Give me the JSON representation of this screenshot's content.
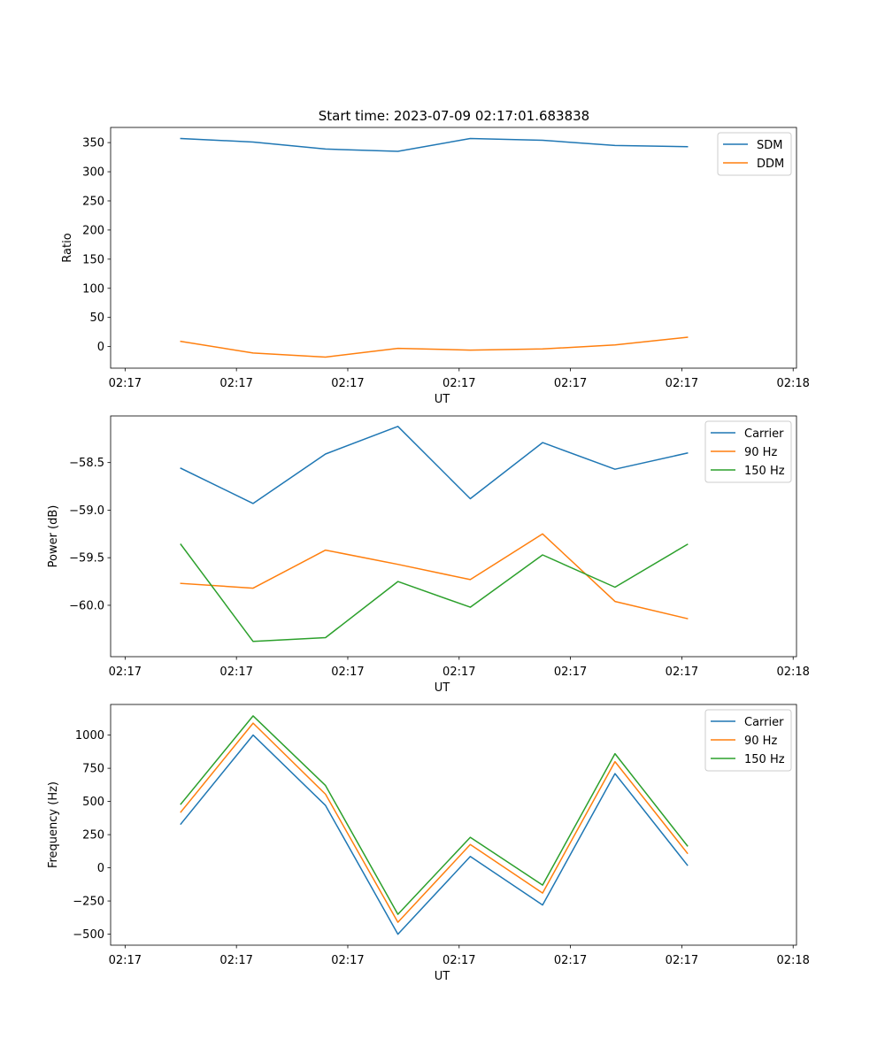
{
  "title": "Start time: 2023-07-09 02:17:01.683838",
  "colors": {
    "blue": "#1f77b4",
    "orange": "#ff7f0e",
    "green": "#2ca02c"
  },
  "chart_data": [
    {
      "type": "line",
      "id": "ratio",
      "ylabel": "Ratio",
      "xlabel": "UT",
      "x_ticks": [
        "02:17",
        "02:17",
        "02:17",
        "02:17",
        "02:17",
        "02:17",
        "02:18"
      ],
      "x_tick_values": [
        0,
        1,
        2,
        3,
        4,
        5,
        6
      ],
      "xlim": [
        -0.13,
        6.03
      ],
      "x": [
        0.5,
        1.15,
        1.8,
        2.45,
        3.1,
        3.75,
        4.4,
        5.05
      ],
      "ylim": [
        -37,
        376
      ],
      "y_ticks": [
        0,
        50,
        100,
        150,
        200,
        250,
        300,
        350
      ],
      "y_tick_labels": [
        "0",
        "50",
        "100",
        "150",
        "200",
        "250",
        "300",
        "350"
      ],
      "legend": "top-right",
      "series": [
        {
          "name": "SDM",
          "color": "#1f77b4",
          "values": [
            357,
            351,
            339,
            335,
            357,
            354,
            345,
            343
          ]
        },
        {
          "name": "DDM",
          "color": "#ff7f0e",
          "values": [
            9,
            -11,
            -18,
            -3,
            -6,
            -4,
            3,
            16
          ]
        }
      ]
    },
    {
      "type": "line",
      "id": "power",
      "ylabel": "Power (dB)",
      "xlabel": "UT",
      "x_ticks": [
        "02:17",
        "02:17",
        "02:17",
        "02:17",
        "02:17",
        "02:17",
        "02:18"
      ],
      "x_tick_values": [
        0,
        1,
        2,
        3,
        4,
        5,
        6
      ],
      "xlim": [
        -0.13,
        6.03
      ],
      "x": [
        0.5,
        1.15,
        1.8,
        2.45,
        3.1,
        3.75,
        4.4,
        5.05
      ],
      "ylim": [
        -60.54,
        -58.01
      ],
      "y_ticks": [
        -60.0,
        -59.5,
        -59.0,
        -58.5
      ],
      "y_tick_labels": [
        "−60.0",
        "−59.5",
        "−59.0",
        "−58.5"
      ],
      "legend": "top-right",
      "series": [
        {
          "name": "Carrier",
          "color": "#1f77b4",
          "values": [
            -58.56,
            -58.93,
            -58.41,
            -58.12,
            -58.88,
            -58.29,
            -58.57,
            -58.4
          ]
        },
        {
          "name": "90 Hz",
          "color": "#ff7f0e",
          "values": [
            -59.77,
            -59.82,
            -59.42,
            -59.57,
            -59.73,
            -59.25,
            -59.96,
            -60.14
          ]
        },
        {
          "name": "150 Hz",
          "color": "#2ca02c",
          "values": [
            -59.36,
            -60.38,
            -60.34,
            -59.75,
            -60.02,
            -59.47,
            -59.81,
            -59.36
          ]
        }
      ]
    },
    {
      "type": "line",
      "id": "frequency",
      "ylabel": "Frequency (Hz)",
      "xlabel": "UT",
      "x_ticks": [
        "02:17",
        "02:17",
        "02:17",
        "02:17",
        "02:17",
        "02:17",
        "02:18"
      ],
      "x_tick_values": [
        0,
        1,
        2,
        3,
        4,
        5,
        6
      ],
      "xlim": [
        -0.13,
        6.03
      ],
      "x": [
        0.5,
        1.15,
        1.8,
        2.45,
        3.1,
        3.75,
        4.4,
        5.05
      ],
      "ylim": [
        -583,
        1231
      ],
      "y_ticks": [
        -500,
        -250,
        0,
        250,
        500,
        750,
        1000
      ],
      "y_tick_labels": [
        "−500",
        "−250",
        "0",
        "250",
        "500",
        "750",
        "1000"
      ],
      "legend": "top-right",
      "series": [
        {
          "name": "Carrier",
          "color": "#1f77b4",
          "values": [
            330,
            1000,
            470,
            -500,
            85,
            -280,
            710,
            20
          ]
        },
        {
          "name": "90 Hz",
          "color": "#ff7f0e",
          "values": [
            420,
            1090,
            555,
            -410,
            175,
            -190,
            800,
            110
          ]
        },
        {
          "name": "150 Hz",
          "color": "#2ca02c",
          "values": [
            480,
            1145,
            620,
            -350,
            230,
            -130,
            860,
            165
          ]
        }
      ]
    }
  ]
}
